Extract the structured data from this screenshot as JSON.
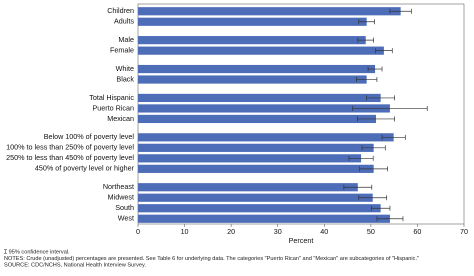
{
  "chart_data": {
    "type": "hbar",
    "categories": [
      "Children",
      "Adults",
      null,
      "Male",
      "Female",
      null,
      "White",
      "Black",
      null,
      "Total Hispanic",
      "Puerto Rican",
      "Mexican",
      null,
      "Below 100% of poverty level",
      "100% to less than 250% of poverty level",
      "250% to less than 450% of poverty level",
      "450% of poverty level or higher",
      null,
      "Northeast",
      "Midwest",
      "South",
      "West"
    ],
    "series": [
      {
        "color": "#4e6db8",
        "values": [
          56.4,
          49.1,
          null,
          48.9,
          52.8,
          null,
          50.9,
          49.1,
          null,
          52.1,
          54.1,
          51.1,
          null,
          54.9,
          50.6,
          47.9,
          50.6,
          null,
          47.2,
          50.4,
          52.1,
          54.1
        ],
        "errors": [
          2.3,
          1.7,
          null,
          1.7,
          1.8,
          null,
          1.5,
          2.2,
          null,
          3,
          8,
          4,
          null,
          2.5,
          2.5,
          2.6,
          3,
          null,
          3,
          3,
          2,
          2.8
        ]
      }
    ],
    "xlabel": "Percent",
    "xlim": [
      0,
      70
    ],
    "xticks": [
      0,
      10,
      20,
      30,
      40,
      50,
      60,
      70
    ],
    "notes": [
      "Ɪ 95% confidence interval.",
      "NOTES: Crude (unadjusted) percentages are presented.  See Table 6 for underlying data. The categories \"Puerto Rican\" and \"Mexican\" are subcategories of \"Hispanic.\"",
      "SOURCE: CDC/NCHS, National Health Interview Survey."
    ]
  }
}
